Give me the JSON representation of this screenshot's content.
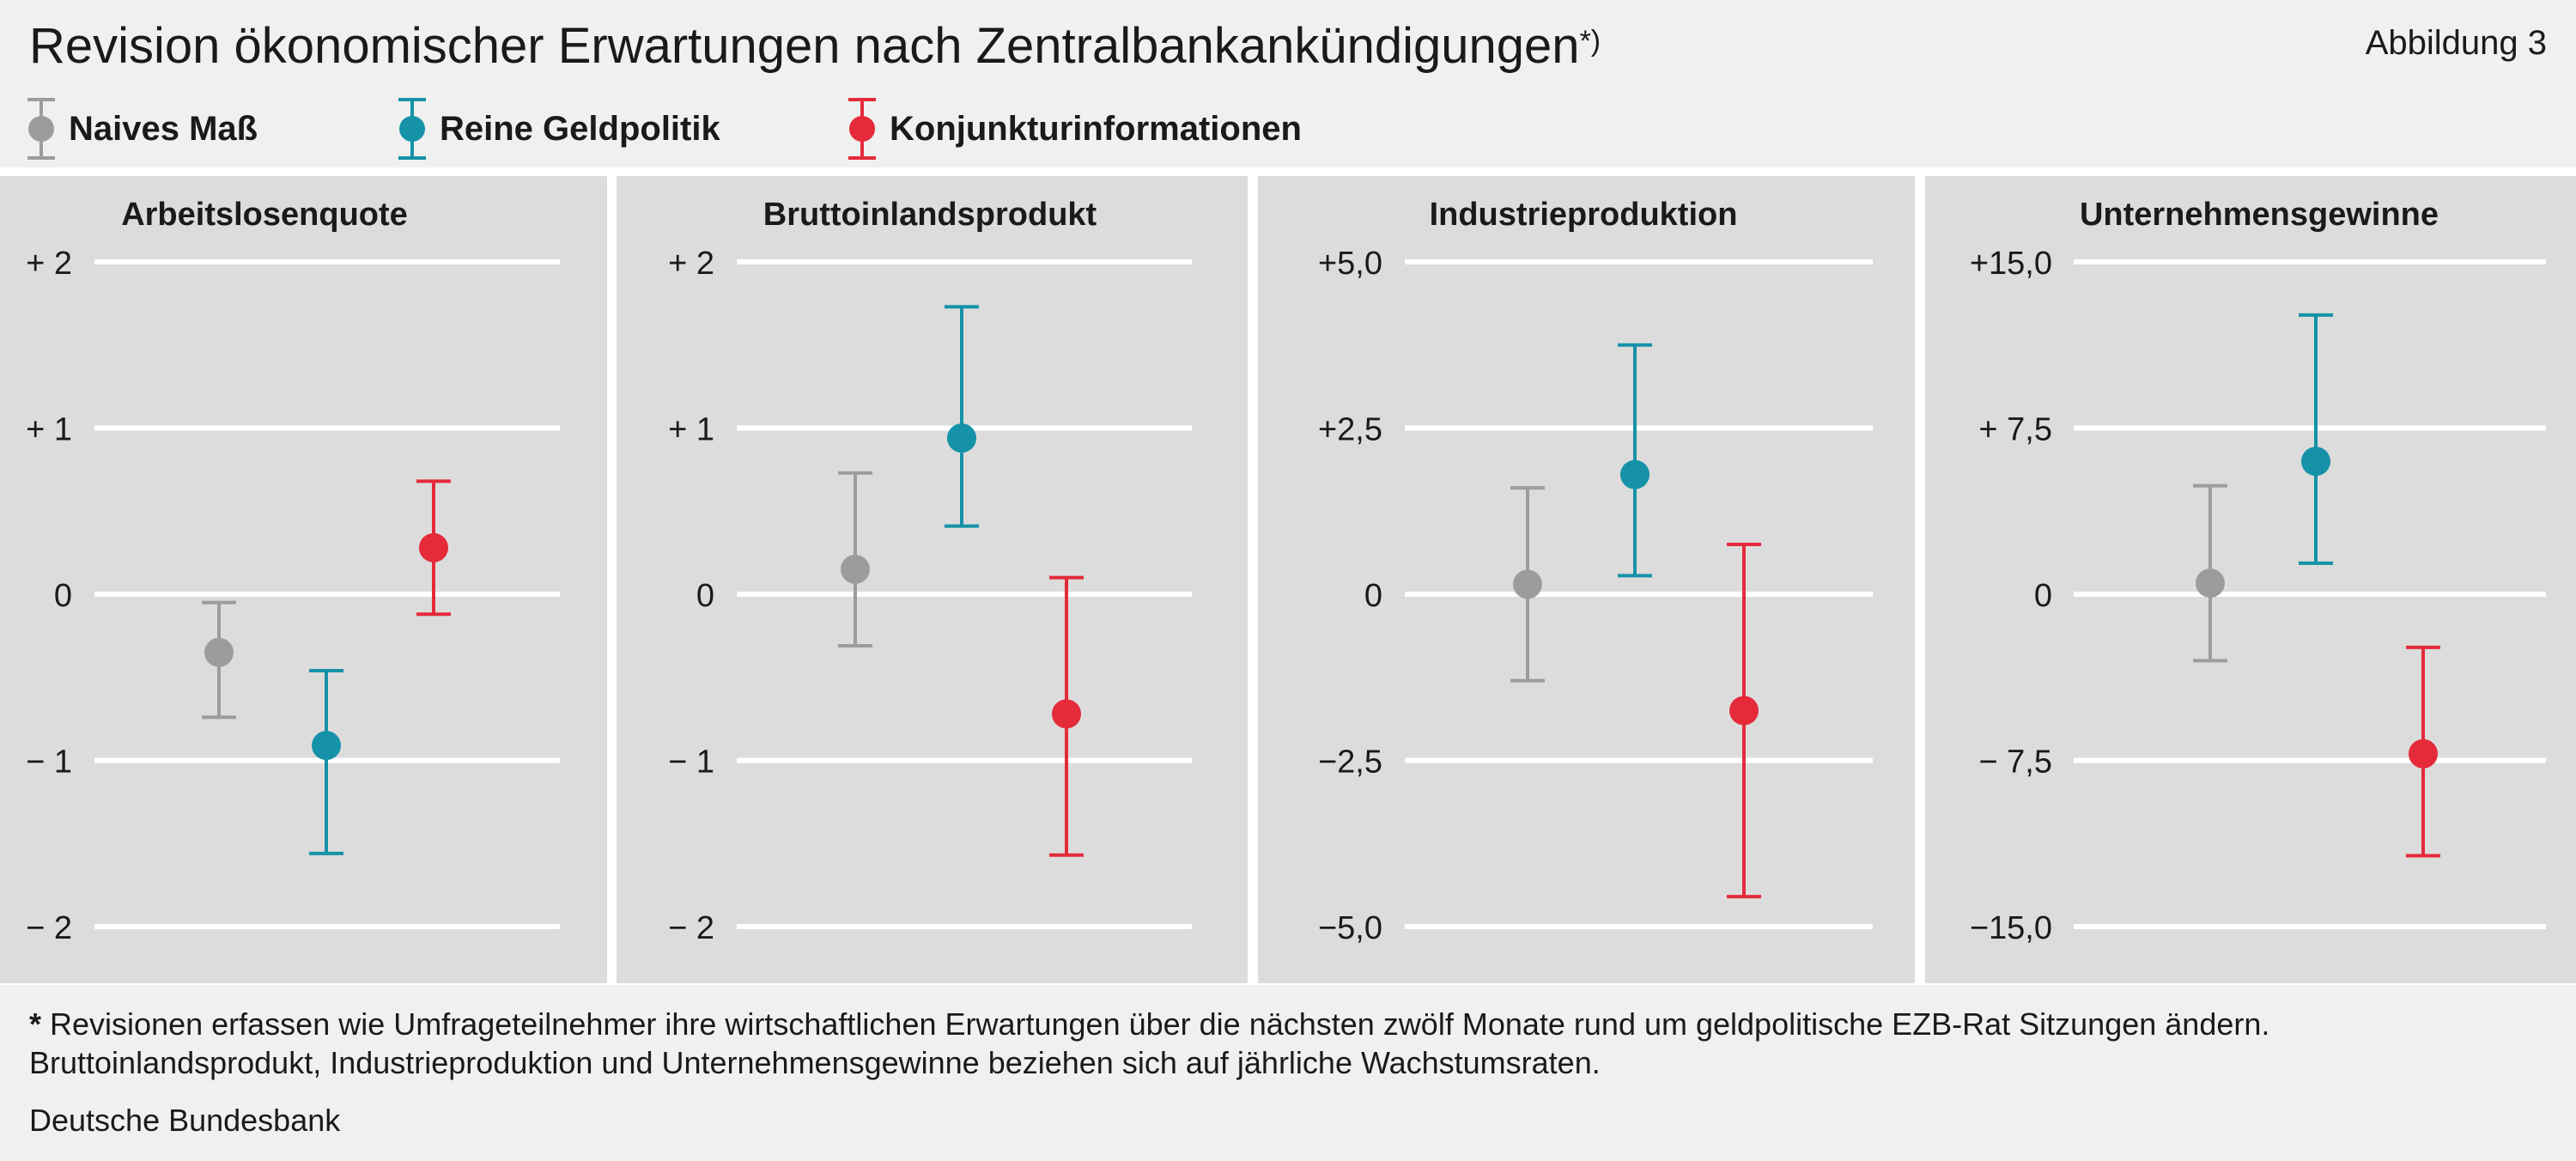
{
  "title": "Revision ökonomischer Erwartungen nach Zentralbankankündigungen",
  "title_marker": "*)",
  "figure_label": "Abbildung 3",
  "colors": {
    "naive": "#9c9c9c",
    "monetary": "#1592a8",
    "business": "#e52a3a",
    "panel_bg": "#dcdcdc",
    "grid": "#ffffff"
  },
  "legend": [
    {
      "label": "Naives Maß",
      "color": "#9c9c9c"
    },
    {
      "label": "Reine Geldpolitik",
      "color": "#1592a8"
    },
    {
      "label": "Konjunkturinformationen",
      "color": "#e52a3a"
    }
  ],
  "chart_data": [
    {
      "type": "scatter",
      "title": "Arbeitslosenquote",
      "ylim": [
        -2,
        2
      ],
      "yticks": [
        2,
        1,
        0,
        -1,
        -2
      ],
      "yticklabels": [
        "+ 2",
        "+ 1",
        "0",
        "− 1",
        "− 2"
      ],
      "grid": true,
      "series": [
        {
          "name": "Naives Maß",
          "value": -0.35,
          "lower": -0.74,
          "upper": -0.05
        },
        {
          "name": "Reine Geldpolitik",
          "value": -0.91,
          "lower": -1.56,
          "upper": -0.46
        },
        {
          "name": "Konjunkturinformationen",
          "value": 0.28,
          "lower": -0.12,
          "upper": 0.68
        }
      ]
    },
    {
      "type": "scatter",
      "title": "Bruttoinlandsprodukt",
      "ylim": [
        -2,
        2
      ],
      "yticks": [
        2,
        1,
        0,
        -1,
        -2
      ],
      "yticklabels": [
        "+ 2",
        "+ 1",
        "0",
        "− 1",
        "− 2"
      ],
      "grid": true,
      "series": [
        {
          "name": "Naives Maß",
          "value": 0.15,
          "lower": -0.31,
          "upper": 0.73
        },
        {
          "name": "Reine Geldpolitik",
          "value": 0.94,
          "lower": 0.41,
          "upper": 1.73
        },
        {
          "name": "Konjunkturinformationen",
          "value": -0.72,
          "lower": -1.57,
          "upper": 0.1
        }
      ]
    },
    {
      "type": "scatter",
      "title": "Industrieproduktion",
      "ylim": [
        -5,
        5
      ],
      "yticks": [
        5,
        2.5,
        0,
        -2.5,
        -5
      ],
      "yticklabels": [
        "+5,0",
        "+2,5",
        "0",
        "−2,5",
        "−5,0"
      ],
      "grid": true,
      "series": [
        {
          "name": "Naives Maß",
          "value": 0.15,
          "lower": -1.3,
          "upper": 1.6
        },
        {
          "name": "Reine Geldpolitik",
          "value": 1.8,
          "lower": 0.28,
          "upper": 3.75
        },
        {
          "name": "Konjunkturinformationen",
          "value": -1.75,
          "lower": -4.55,
          "upper": 0.75
        }
      ]
    },
    {
      "type": "scatter",
      "title": "Unternehmensgewinne",
      "ylim": [
        -15,
        15
      ],
      "yticks": [
        15,
        7.5,
        0,
        -7.5,
        -15
      ],
      "yticklabels": [
        "+15,0",
        "+  7,5",
        "0",
        "−  7,5",
        "−15,0"
      ],
      "grid": true,
      "series": [
        {
          "name": "Naives Maß",
          "value": 0.5,
          "lower": -3,
          "upper": 4.9
        },
        {
          "name": "Reine Geldpolitik",
          "value": 6,
          "lower": 1.4,
          "upper": 12.6
        },
        {
          "name": "Konjunkturinformationen",
          "value": -7.2,
          "lower": -11.8,
          "upper": -2.4
        }
      ]
    }
  ],
  "footnote_marker": "*",
  "footnote": "Revisionen erfassen wie Umfrageteilnehmer ihre wirtschaftlichen Erwartungen über die nächsten zwölf Monate rund um geldpolitische EZB-Rat Sitzungen ändern. Bruttoinlandsprodukt, Industrieproduktion und Unternehmensgewinne beziehen sich auf jährliche Wachstumsraten.",
  "source": "Deutsche Bundesbank"
}
